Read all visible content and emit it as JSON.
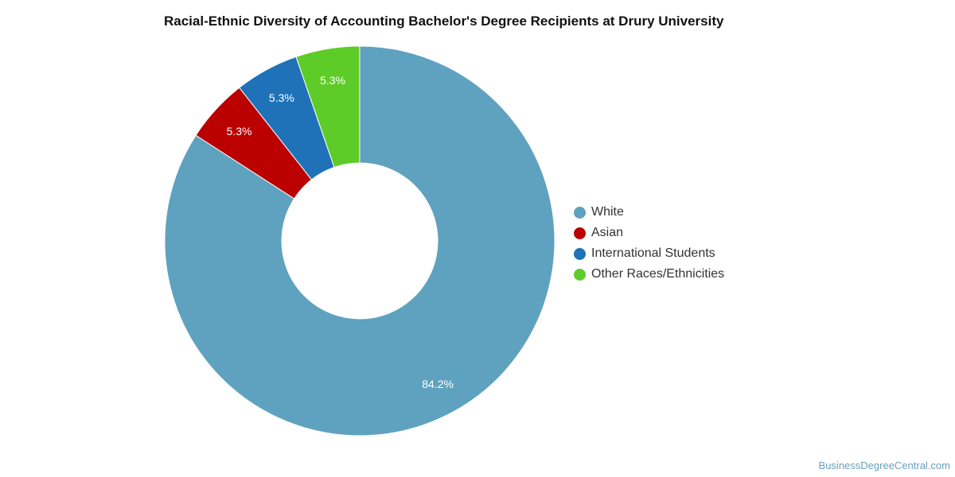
{
  "chart_data": {
    "type": "pie",
    "donut": true,
    "title": "Racial-Ethnic Diversity of Accounting Bachelor's Degree Recipients at Drury University",
    "categories": [
      "White",
      "Asian",
      "International Students",
      "Other Races/Ethnicities"
    ],
    "values": [
      84.2,
      5.3,
      5.3,
      5.3
    ],
    "labels": [
      "84.2%",
      "5.3%",
      "5.3%",
      "5.3%"
    ],
    "colors": [
      "#5fa2bf",
      "#bb0000",
      "#1f72b8",
      "#5ecc28"
    ],
    "legend_position": "right"
  },
  "watermark": "BusinessDegreeCentral.com"
}
